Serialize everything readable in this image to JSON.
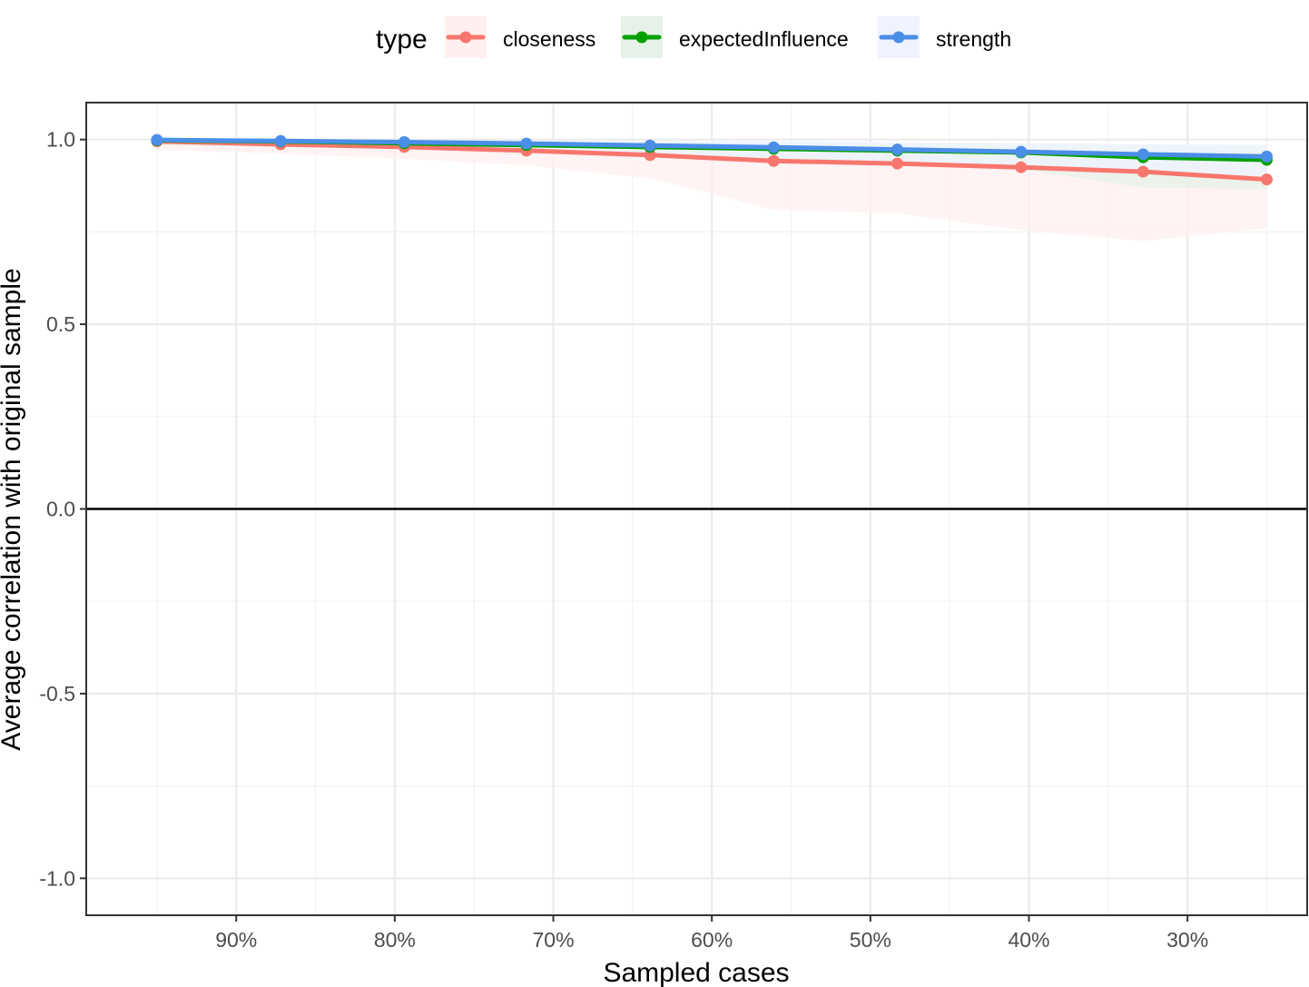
{
  "chart_data": {
    "type": "line",
    "xlabel": "Sampled cases",
    "ylabel": "Average correlation with original sample",
    "x_reversed": true,
    "xlim": [
      0.2245,
      0.9946
    ],
    "ylim": [
      -1.1,
      1.1
    ],
    "x_ticks": [
      {
        "value": 0.9,
        "label": "90%"
      },
      {
        "value": 0.8,
        "label": "80%"
      },
      {
        "value": 0.7,
        "label": "70%"
      },
      {
        "value": 0.6,
        "label": "60%"
      },
      {
        "value": 0.5,
        "label": "50%"
      },
      {
        "value": 0.4,
        "label": "40%"
      },
      {
        "value": 0.3,
        "label": "30%"
      }
    ],
    "y_ticks": [
      {
        "value": 1.0,
        "label": "1.0"
      },
      {
        "value": 0.5,
        "label": "0.5"
      },
      {
        "value": 0.0,
        "label": "0.0"
      },
      {
        "value": -0.5,
        "label": "-0.5"
      },
      {
        "value": -1.0,
        "label": "-1.0"
      }
    ],
    "x_minor_ticks": [
      0.95,
      0.85,
      0.75,
      0.65,
      0.55,
      0.45,
      0.35,
      0.25
    ],
    "y_minor_ticks": [
      0.75,
      0.25,
      -0.25,
      -0.75
    ],
    "reference_line_y": 0,
    "grid": true,
    "legend": {
      "title": "type",
      "position": "top"
    },
    "x": [
      0.95,
      0.872,
      0.794,
      0.717,
      0.639,
      0.561,
      0.483,
      0.405,
      0.328,
      0.25
    ],
    "series": [
      {
        "name": "closeness",
        "color": "#F8766D",
        "band_color": "#FFF0EF",
        "values": [
          0.995,
          0.987,
          0.98,
          0.97,
          0.958,
          0.942,
          0.935,
          0.925,
          0.913,
          0.892
        ],
        "lower": [
          0.972,
          0.962,
          0.948,
          0.93,
          0.895,
          0.81,
          0.8,
          0.755,
          0.725,
          0.76
        ],
        "upper": [
          0.999,
          0.997,
          0.993,
          0.99,
          0.985,
          0.98,
          0.978,
          0.975,
          0.972,
          0.97
        ]
      },
      {
        "name": "expectedInfluence",
        "color": "#00A000",
        "band_color": "#E6F1E7",
        "values": [
          0.998,
          0.995,
          0.99,
          0.985,
          0.98,
          0.975,
          0.97,
          0.965,
          0.952,
          0.945
        ],
        "lower": [
          0.985,
          0.98,
          0.975,
          0.965,
          0.955,
          0.945,
          0.935,
          0.92,
          0.87,
          0.865
        ],
        "upper": [
          1.0,
          0.999,
          0.998,
          0.997,
          0.995,
          0.993,
          0.99,
          0.988,
          0.985,
          0.985
        ]
      },
      {
        "name": "strength",
        "color": "#4B8EE8",
        "band_color": "#EEF3FE",
        "values": [
          0.999,
          0.996,
          0.993,
          0.989,
          0.984,
          0.979,
          0.973,
          0.967,
          0.96,
          0.954
        ],
        "lower": [
          0.99,
          0.985,
          0.98,
          0.972,
          0.962,
          0.952,
          0.942,
          0.93,
          0.91,
          0.9
        ],
        "upper": [
          1.0,
          0.999,
          0.998,
          0.997,
          0.996,
          0.995,
          0.993,
          0.99,
          0.988,
          0.986
        ]
      }
    ]
  }
}
